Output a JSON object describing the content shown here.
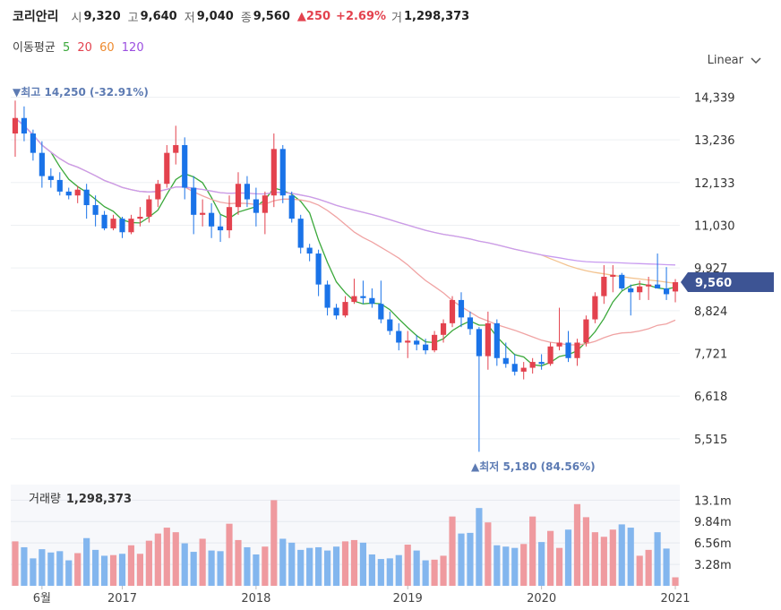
{
  "header": {
    "name": "코리안리",
    "open_label": "시",
    "open": "9,320",
    "high_label": "고",
    "high": "9,640",
    "low_label": "저",
    "low": "9,040",
    "close_label": "종",
    "close": "9,560",
    "change": "▲250",
    "change_pct": "+2.69%",
    "volume_label": "거",
    "volume": "1,298,373"
  },
  "ma_legend": {
    "label": "이동평균",
    "items": [
      {
        "text": "5",
        "color": "#3aa83a"
      },
      {
        "text": "20",
        "color": "#e3424e"
      },
      {
        "text": "60",
        "color": "#ee8a2e"
      },
      {
        "text": "120",
        "color": "#9b4fe0"
      }
    ]
  },
  "scale_button": "Linear",
  "annotations": {
    "high": "▼최고 14,250 (-32.91%)",
    "low": "▲최저 5,180 (84.56%)",
    "current": "9,560"
  },
  "volume_panel": {
    "label": "거래량",
    "value": "1,298,373"
  },
  "colors": {
    "up": "#e3424e",
    "down": "#1a73e8",
    "vol_up": "#ef9a9f",
    "vol_down": "#83b6ee",
    "current_tag": "#3d5494"
  },
  "chart_data": {
    "type": "candlestick",
    "price_axis": {
      "ticks": [
        14339,
        13236,
        12133,
        11030,
        9927,
        8824,
        7721,
        6618,
        5515
      ],
      "range": [
        5050,
        14650
      ]
    },
    "volume_axis": {
      "ticks": [
        "13.1m",
        "9.84m",
        "6.56m",
        "3.28m"
      ],
      "values": [
        13.1,
        9.84,
        6.56,
        3.28
      ],
      "range": [
        0,
        14.8
      ]
    },
    "x_labels": [
      {
        "label": "6월",
        "index": 3
      },
      {
        "label": "2017",
        "index": 12
      },
      {
        "label": "2018",
        "index": 27
      },
      {
        "label": "2019",
        "index": 44
      },
      {
        "label": "2020",
        "index": 59
      },
      {
        "label": "2021",
        "index": 74
      }
    ],
    "candles": [
      [
        13400,
        14250,
        12800,
        13800,
        6.8
      ],
      [
        13800,
        14100,
        13200,
        13400,
        5.9
      ],
      [
        13400,
        13500,
        12700,
        12900,
        4.2
      ],
      [
        12900,
        13200,
        12000,
        12300,
        5.6
      ],
      [
        12300,
        12500,
        12000,
        12200,
        5.1
      ],
      [
        12200,
        12400,
        11800,
        11900,
        5.3
      ],
      [
        11900,
        12000,
        11700,
        11800,
        3.9
      ],
      [
        11800,
        12050,
        11600,
        11950,
        5.0
      ],
      [
        11950,
        12100,
        11200,
        11550,
        7.3
      ],
      [
        11550,
        11800,
        11000,
        11300,
        5.5
      ],
      [
        11300,
        11400,
        10900,
        10950,
        4.6
      ],
      [
        10950,
        11300,
        10900,
        11200,
        4.7
      ],
      [
        11200,
        11250,
        10700,
        10850,
        4.9
      ],
      [
        10850,
        11300,
        10800,
        11200,
        6.2
      ],
      [
        11200,
        11500,
        11000,
        11250,
        4.9
      ],
      [
        11250,
        11800,
        11100,
        11700,
        6.9
      ],
      [
        11700,
        12200,
        11500,
        12100,
        8.0
      ],
      [
        12100,
        13100,
        12000,
        12900,
        8.9
      ],
      [
        12900,
        13600,
        12600,
        13100,
        8.2
      ],
      [
        13100,
        13300,
        11700,
        12000,
        6.5
      ],
      [
        12000,
        12300,
        10800,
        11300,
        5.2
      ],
      [
        11300,
        11700,
        11000,
        11350,
        7.2
      ],
      [
        11350,
        11600,
        10700,
        11000,
        5.4
      ],
      [
        11000,
        11300,
        10600,
        10900,
        5.3
      ],
      [
        10900,
        11800,
        10700,
        11500,
        9.5
      ],
      [
        11500,
        12400,
        11300,
        12100,
        7.0
      ],
      [
        12100,
        12300,
        11500,
        11700,
        5.9
      ],
      [
        11700,
        12000,
        11000,
        11350,
        4.8
      ],
      [
        11350,
        11900,
        10800,
        11800,
        6.0
      ],
      [
        11800,
        13400,
        11500,
        13000,
        13.1
      ],
      [
        13000,
        13100,
        11600,
        11800,
        7.2
      ],
      [
        11800,
        11900,
        11100,
        11200,
        6.6
      ],
      [
        11200,
        11300,
        10300,
        10450,
        5.5
      ],
      [
        10450,
        10550,
        10100,
        10300,
        5.8
      ],
      [
        10300,
        10400,
        9200,
        9500,
        5.9
      ],
      [
        9500,
        9600,
        8700,
        8900,
        5.4
      ],
      [
        8900,
        9000,
        8600,
        8700,
        6.0
      ],
      [
        8700,
        9200,
        8650,
        9050,
        6.8
      ],
      [
        9050,
        9650,
        9000,
        9200,
        7.0
      ],
      [
        9200,
        9600,
        9000,
        9150,
        6.6
      ],
      [
        9150,
        9400,
        8900,
        9000,
        4.8
      ],
      [
        9000,
        9600,
        8500,
        8600,
        4.1
      ],
      [
        8600,
        8800,
        8200,
        8300,
        4.2
      ],
      [
        8300,
        8500,
        7800,
        8000,
        4.7
      ],
      [
        8000,
        8300,
        7600,
        8050,
        6.3
      ],
      [
        8050,
        8200,
        7800,
        7950,
        5.4
      ],
      [
        7950,
        8100,
        7700,
        7800,
        3.9
      ],
      [
        7800,
        8300,
        7750,
        8200,
        4.0
      ],
      [
        8200,
        8600,
        8000,
        8500,
        4.6
      ],
      [
        8500,
        9200,
        8400,
        9100,
        10.6
      ],
      [
        9100,
        9300,
        8400,
        8650,
        8.0
      ],
      [
        8650,
        8800,
        8200,
        8350,
        8.1
      ],
      [
        8350,
        8400,
        5180,
        7650,
        11.9
      ],
      [
        7650,
        8800,
        7300,
        8500,
        9.7
      ],
      [
        8500,
        8600,
        7400,
        7600,
        6.2
      ],
      [
        7600,
        8000,
        7350,
        7450,
        6.0
      ],
      [
        7450,
        7700,
        7150,
        7250,
        5.8
      ],
      [
        7250,
        7500,
        7050,
        7350,
        6.4
      ],
      [
        7350,
        7600,
        7200,
        7500,
        10.6
      ],
      [
        7500,
        7700,
        7300,
        7450,
        6.7
      ],
      [
        7450,
        8000,
        7400,
        7900,
        8.4
      ],
      [
        7900,
        8900,
        7800,
        8000,
        5.8
      ],
      [
        8000,
        8300,
        7500,
        7600,
        8.6
      ],
      [
        7600,
        8100,
        7400,
        8000,
        12.5
      ],
      [
        8000,
        8700,
        7900,
        8600,
        10.5
      ],
      [
        8600,
        9300,
        8500,
        9200,
        8.2
      ],
      [
        9200,
        10000,
        9000,
        9700,
        7.5
      ],
      [
        9700,
        10000,
        9300,
        9750,
        8.6
      ],
      [
        9750,
        9800,
        9350,
        9400,
        9.4
      ],
      [
        9400,
        9500,
        8700,
        9300,
        8.9
      ],
      [
        9300,
        9600,
        9100,
        9450,
        4.6
      ],
      [
        9450,
        9700,
        9100,
        9500,
        5.5
      ],
      [
        9500,
        10300,
        9400,
        9400,
        8.2
      ],
      [
        9400,
        9950,
        9100,
        9250,
        5.7
      ],
      [
        9320,
        9640,
        9040,
        9560,
        1.3
      ]
    ]
  }
}
